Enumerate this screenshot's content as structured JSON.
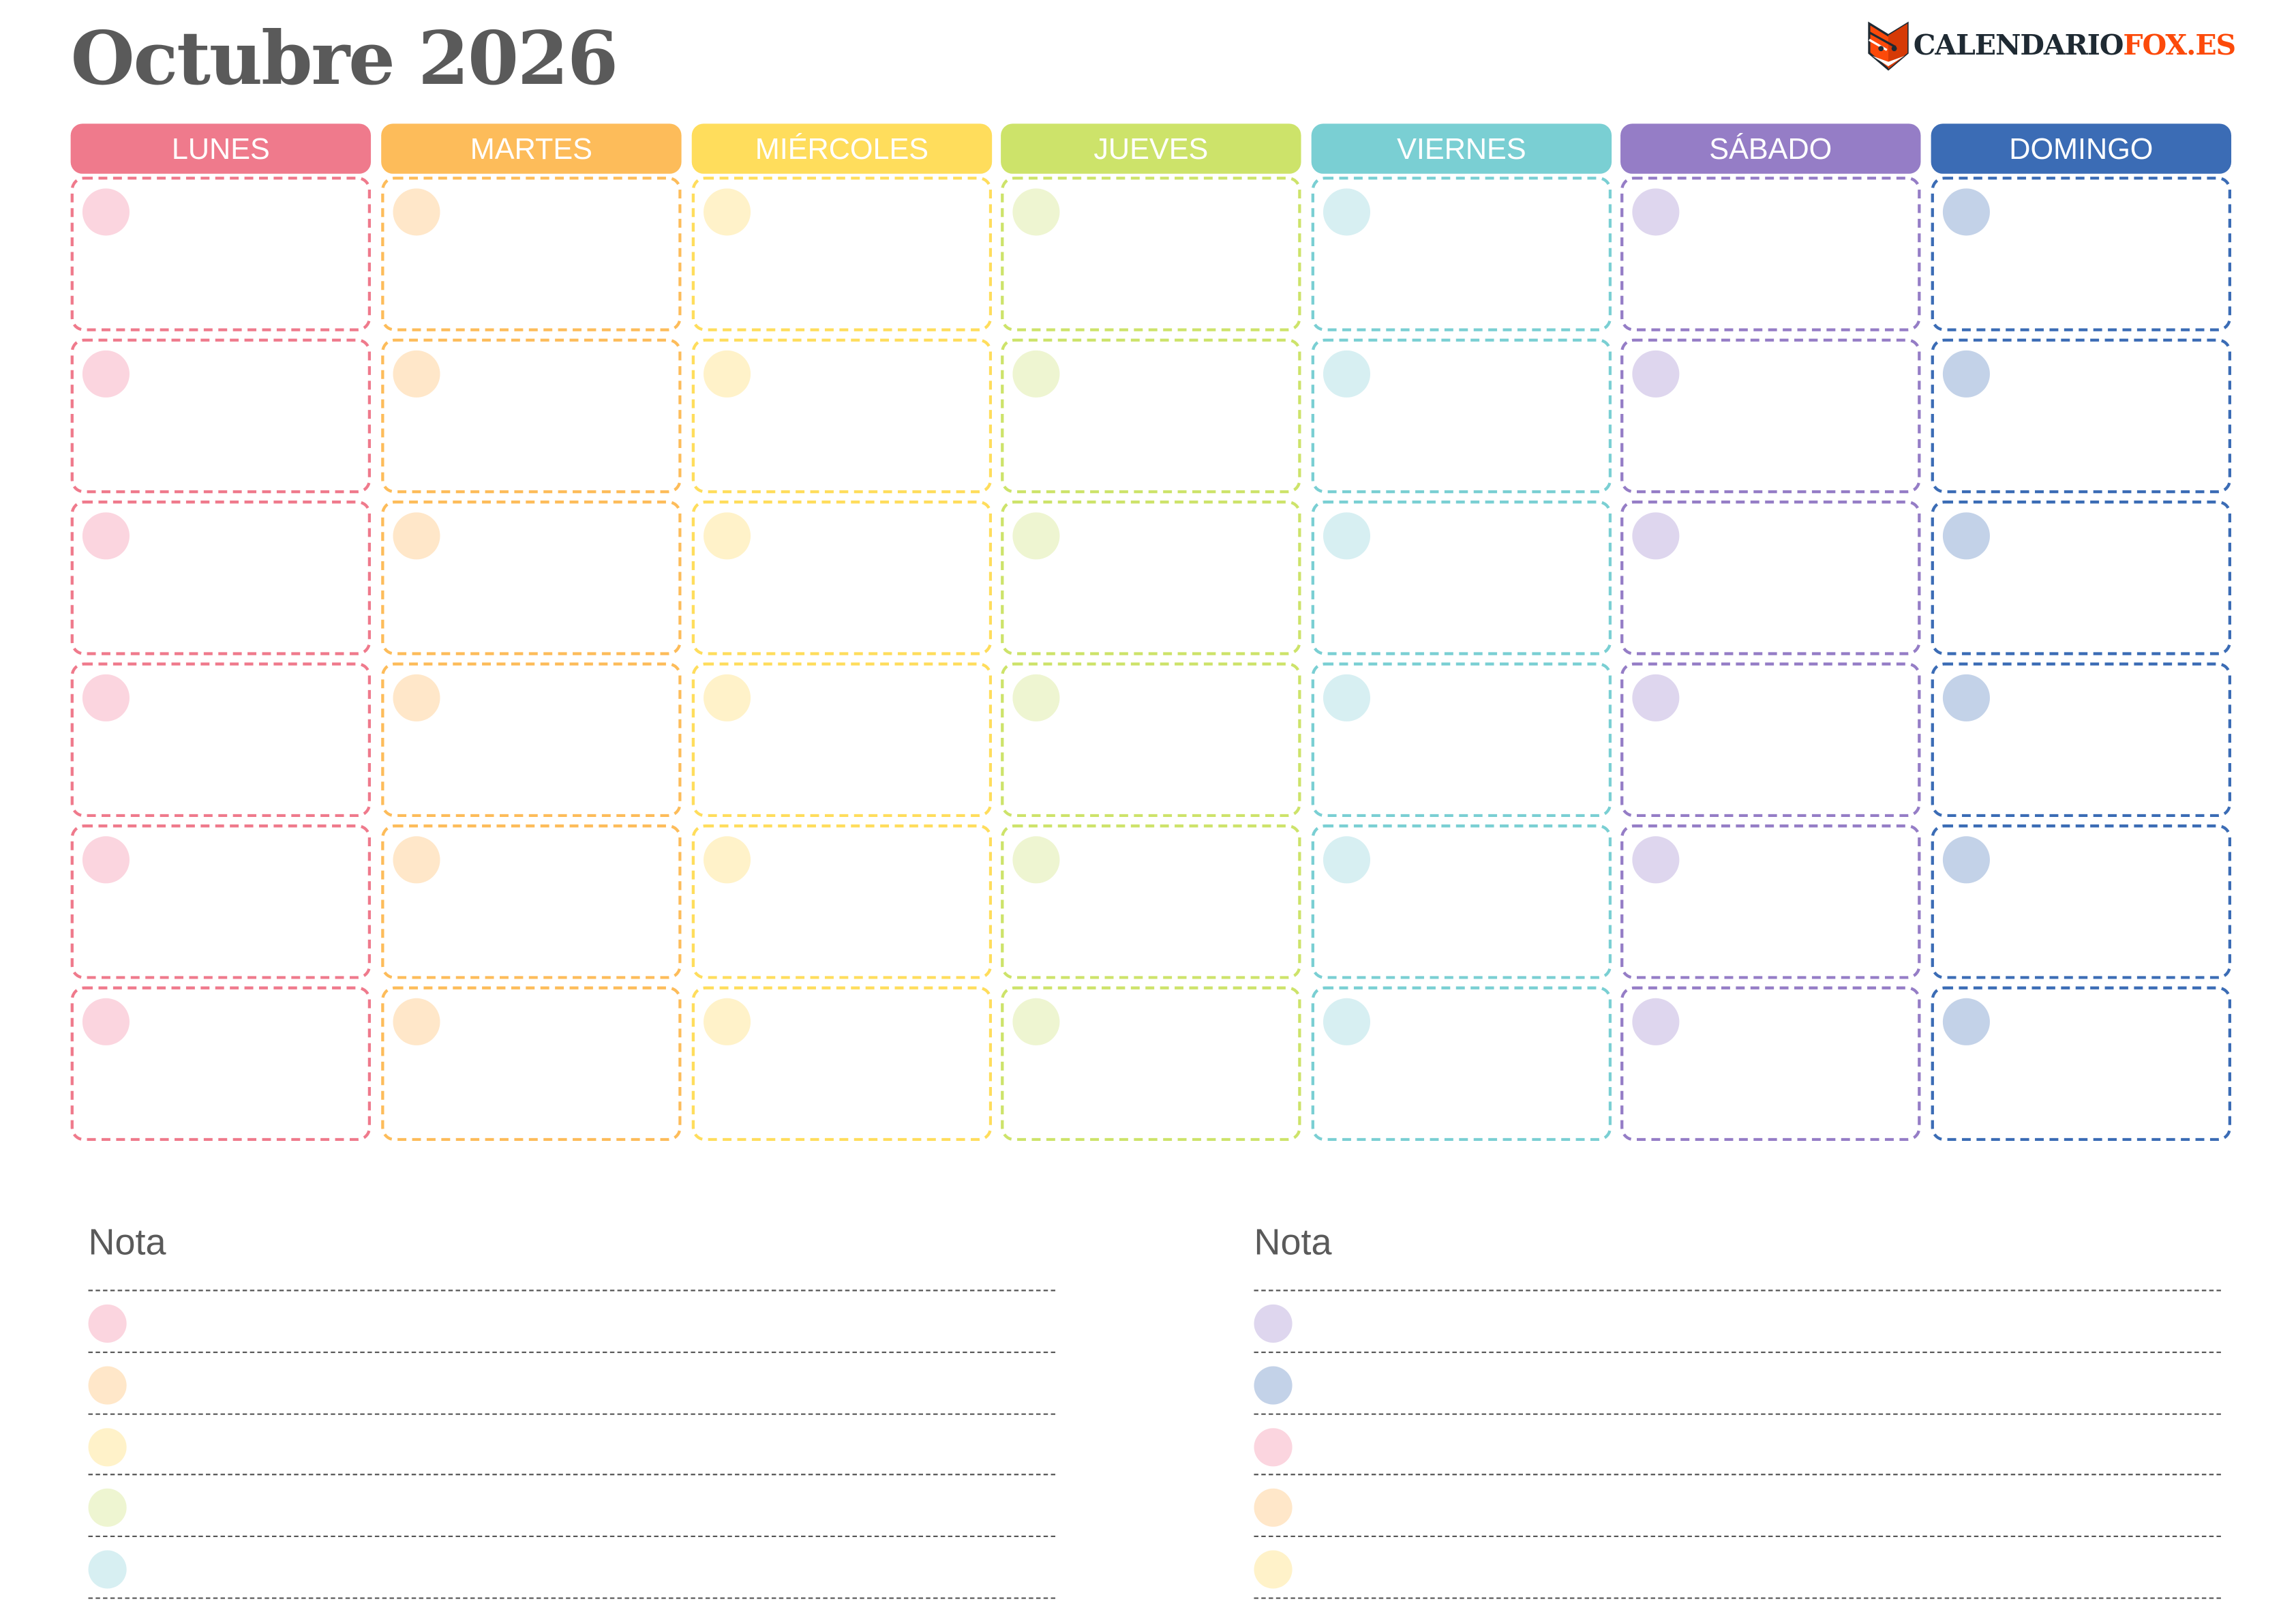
{
  "header": {
    "title": "Octubre 2026",
    "logo": {
      "text_main": "CALENDARIO",
      "text_accent": "FOX.ES",
      "icon": "fox-icon",
      "color_main": "#1f2a33",
      "color_accent": "#fc4a0a"
    }
  },
  "days": [
    {
      "label": "LUNES",
      "color": "#EF7A8C",
      "light": "#FBD5DF"
    },
    {
      "label": "MARTES",
      "color": "#FDBC5A",
      "light": "#FFE7C9"
    },
    {
      "label": "MIÉRCOLES",
      "color": "#FFDD5C",
      "light": "#FFF2C9"
    },
    {
      "label": "JUEVES",
      "color": "#CDE36A",
      "light": "#EEF5D1"
    },
    {
      "label": "VIERNES",
      "color": "#7ACFD3",
      "light": "#D7EFF2"
    },
    {
      "label": "SÁBADO",
      "color": "#957DC6",
      "light": "#DED6EE"
    },
    {
      "label": "DOMINGO",
      "color": "#3B6CB5",
      "light": "#C3D2E8"
    }
  ],
  "weeks": 6,
  "notes": [
    {
      "label": "Nota",
      "dot_colors": [
        "#FBD5DF",
        "#FFE7C9",
        "#FFF2C9",
        "#EEF5D1",
        "#D7EFF2"
      ]
    },
    {
      "label": "Nota",
      "dot_colors": [
        "#DED6EE",
        "#C3D2E8",
        "#FBD5DF",
        "#FFE7C9",
        "#FFF2C9"
      ]
    }
  ]
}
